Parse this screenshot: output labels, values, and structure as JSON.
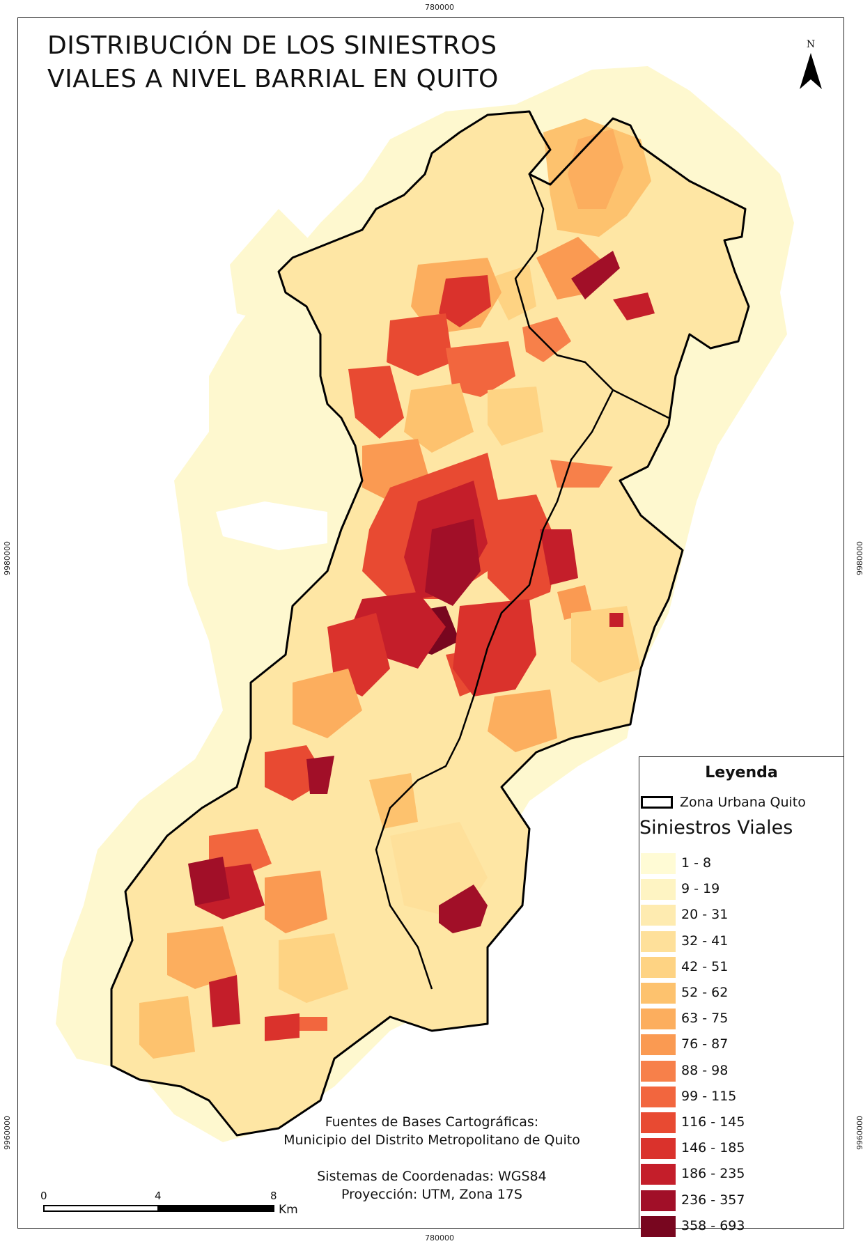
{
  "title": {
    "line1": "DISTRIBUCIÓN DE LOS SINIESTROS",
    "line2": "VIALES A NIVEL BARRIAL EN QUITO"
  },
  "north_arrow": {
    "label": "N"
  },
  "coordinates": {
    "top": "780000",
    "bottom": "780000",
    "left_upper": "9980000",
    "left_lower": "9960000",
    "right_upper": "9980000",
    "right_lower": "9960000"
  },
  "legend": {
    "title": "Leyenda",
    "zone_label": "Zona Urbana Quito",
    "classes_title": "Siniestros Viales",
    "classes": [
      {
        "label": "1 - 8",
        "color": "#fffbd5"
      },
      {
        "label": "9 - 19",
        "color": "#fef4c3"
      },
      {
        "label": "20 - 31",
        "color": "#feebb0"
      },
      {
        "label": "32 - 41",
        "color": "#fee09a"
      },
      {
        "label": "42 - 51",
        "color": "#fed383"
      },
      {
        "label": "52 - 62",
        "color": "#fdc26e"
      },
      {
        "label": "63 - 75",
        "color": "#fcae5e"
      },
      {
        "label": "76 - 87",
        "color": "#fa9a52"
      },
      {
        "label": "88 - 98",
        "color": "#f7804a"
      },
      {
        "label": "99 - 115",
        "color": "#f2663e"
      },
      {
        "label": "116 - 145",
        "color": "#e84a32"
      },
      {
        "label": "146 - 185",
        "color": "#da322c"
      },
      {
        "label": "186 - 235",
        "color": "#c41e2a"
      },
      {
        "label": "236 - 357",
        "color": "#a10f28"
      },
      {
        "label": "358 - 693",
        "color": "#78061f"
      }
    ]
  },
  "sources": {
    "line1": "Fuentes de Bases Cartográficas:",
    "line2": "Municipio del Distrito Metropolitano de Quito"
  },
  "crs": {
    "line1": "Sistemas de Coordenadas: WGS84",
    "line2": "Proyección: UTM, Zona 17S"
  },
  "scale_bar": {
    "ticks": [
      "0",
      "4",
      "8"
    ],
    "unit": "Km"
  }
}
